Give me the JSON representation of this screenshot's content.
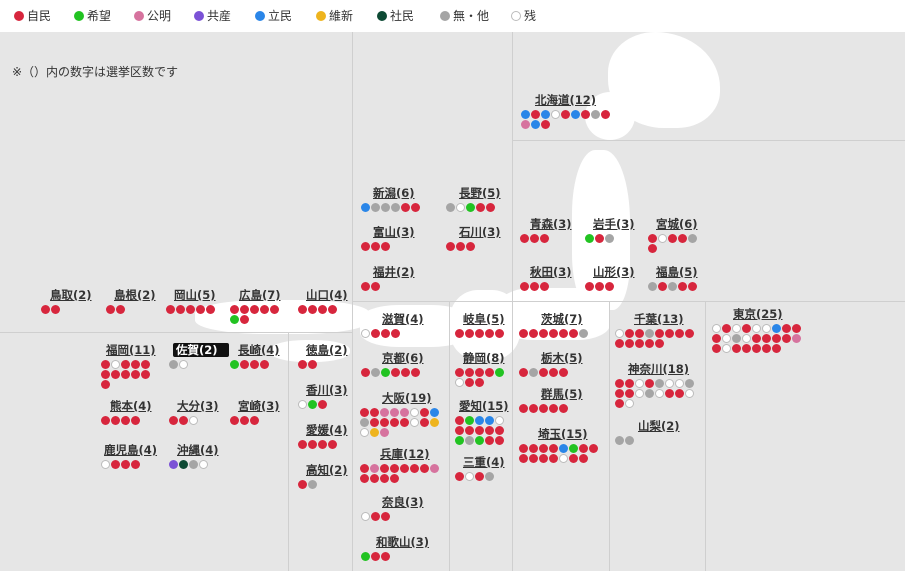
{
  "legend": [
    {
      "label": "自民",
      "key": "jimin"
    },
    {
      "label": "希望",
      "key": "kibou"
    },
    {
      "label": "公明",
      "key": "koumei"
    },
    {
      "label": "共産",
      "key": "kyousan"
    },
    {
      "label": "立民",
      "key": "rikken"
    },
    {
      "label": "維新",
      "key": "ishin"
    },
    {
      "label": "社民",
      "key": "shamin"
    },
    {
      "label": "無・他",
      "key": "mushozoku"
    },
    {
      "label": "残",
      "key": "zan"
    }
  ],
  "colors": {
    "jimin": "#d7263d",
    "kibou": "#22c322",
    "koumei": "#d6739e",
    "kyousan": "#7b52d6",
    "rikken": "#2a86e8",
    "ishin": "#eeb41e",
    "shamin": "#0d4a34",
    "mushozoku": "#a5a5a5",
    "zan": "#ffffff"
  },
  "note": "※（）内の数字は選挙区数です",
  "prefectures": {
    "hokkaido": {
      "label": "北海道(12)",
      "seats": [
        "rikken",
        "jimin",
        "rikken",
        "zan",
        "jimin",
        "rikken",
        "jimin",
        "mushozoku",
        "jimin",
        "koumei",
        "rikken",
        "jimin"
      ]
    },
    "niigata": {
      "label": "新潟(6)",
      "seats": [
        "rikken",
        "mushozoku",
        "mushozoku",
        "mushozoku",
        "jimin",
        "jimin"
      ]
    },
    "nagano": {
      "label": "長野(5)",
      "seats": [
        "mushozoku",
        "zan",
        "kibou",
        "jimin",
        "jimin"
      ]
    },
    "toyama": {
      "label": "富山(3)",
      "seats": [
        "jimin",
        "jimin",
        "jimin"
      ]
    },
    "ishikawa": {
      "label": "石川(3)",
      "seats": [
        "jimin",
        "jimin",
        "jimin"
      ]
    },
    "fukui": {
      "label": "福井(2)",
      "seats": [
        "jimin",
        "jimin"
      ]
    },
    "aomori": {
      "label": "青森(3)",
      "seats": [
        "jimin",
        "jimin",
        "jimin"
      ]
    },
    "iwate": {
      "label": "岩手(3)",
      "seats": [
        "kibou",
        "jimin",
        "mushozoku"
      ]
    },
    "miyagi": {
      "label": "宮城(6)",
      "seats": [
        "jimin",
        "zan",
        "jimin",
        "jimin",
        "mushozoku",
        "jimin"
      ]
    },
    "akita": {
      "label": "秋田(3)",
      "seats": [
        "jimin",
        "jimin",
        "jimin"
      ]
    },
    "yamagata": {
      "label": "山形(3)",
      "seats": [
        "jimin",
        "jimin",
        "jimin"
      ]
    },
    "fukushima": {
      "label": "福島(5)",
      "seats": [
        "mushozoku",
        "jimin",
        "mushozoku",
        "jimin",
        "jimin"
      ]
    },
    "tottori": {
      "label": "鳥取(2)",
      "seats": [
        "jimin",
        "jimin"
      ]
    },
    "shimane": {
      "label": "島根(2)",
      "seats": [
        "jimin",
        "jimin"
      ]
    },
    "okayama": {
      "label": "岡山(5)",
      "seats": [
        "jimin",
        "jimin",
        "jimin",
        "jimin",
        "jimin"
      ]
    },
    "hiroshima": {
      "label": "広島(7)",
      "seats": [
        "jimin",
        "jimin",
        "jimin",
        "jimin",
        "jimin",
        "kibou",
        "jimin"
      ]
    },
    "yamaguchi": {
      "label": "山口(4)",
      "seats": [
        "jimin",
        "jimin",
        "jimin",
        "jimin"
      ]
    },
    "shiga": {
      "label": "滋賀(4)",
      "seats": [
        "zan",
        "jimin",
        "jimin",
        "jimin"
      ]
    },
    "gifu": {
      "label": "岐阜(5)",
      "seats": [
        "jimin",
        "jimin",
        "jimin",
        "jimin",
        "jimin"
      ]
    },
    "ibaraki": {
      "label": "茨城(7)",
      "seats": [
        "jimin",
        "jimin",
        "jimin",
        "jimin",
        "jimin",
        "jimin",
        "mushozoku"
      ]
    },
    "chiba": {
      "label": "千葉(13)",
      "seats": [
        "zan",
        "jimin",
        "jimin",
        "mushozoku",
        "jimin",
        "jimin",
        "jimin",
        "jimin",
        "jimin",
        "jimin",
        "jimin",
        "jimin",
        "jimin"
      ]
    },
    "tokyo": {
      "label": "東京(25)",
      "seats": [
        "zan",
        "jimin",
        "zan",
        "jimin",
        "zan",
        "zan",
        "rikken",
        "jimin",
        "jimin",
        "jimin",
        "zan",
        "mushozoku",
        "zan",
        "jimin",
        "jimin",
        "jimin",
        "jimin",
        "koumei",
        "jimin",
        "zan",
        "jimin",
        "jimin",
        "jimin",
        "jimin",
        "jimin"
      ]
    },
    "fukuoka": {
      "label": "福岡(11)",
      "seats": [
        "jimin",
        "zan",
        "jimin",
        "jimin",
        "jimin",
        "jimin",
        "jimin",
        "jimin",
        "jimin",
        "jimin",
        "jimin"
      ]
    },
    "saga": {
      "label": "佐賀(2)",
      "seats": [
        "mushozoku",
        "zan"
      ]
    },
    "nagasaki": {
      "label": "長崎(4)",
      "seats": [
        "kibou",
        "jimin",
        "jimin",
        "jimin"
      ]
    },
    "tokushima": {
      "label": "徳島(2)",
      "seats": [
        "jimin",
        "jimin"
      ]
    },
    "kyoto": {
      "label": "京都(6)",
      "seats": [
        "jimin",
        "mushozoku",
        "kibou",
        "jimin",
        "jimin",
        "jimin"
      ]
    },
    "shizuoka": {
      "label": "静岡(8)",
      "seats": [
        "jimin",
        "jimin",
        "jimin",
        "jimin",
        "kibou",
        "zan",
        "jimin",
        "jimin"
      ]
    },
    "tochigi": {
      "label": "栃木(5)",
      "seats": [
        "jimin",
        "mushozoku",
        "jimin",
        "jimin",
        "jimin"
      ]
    },
    "kanagawa": {
      "label": "神奈川(18)",
      "seats": [
        "jimin",
        "jimin",
        "zan",
        "jimin",
        "mushozoku",
        "zan",
        "zan",
        "mushozoku",
        "jimin",
        "jimin",
        "zan",
        "mushozoku",
        "zan",
        "jimin",
        "jimin",
        "zan",
        "jimin",
        "zan"
      ]
    },
    "kumamoto": {
      "label": "熊本(4)",
      "seats": [
        "jimin",
        "jimin",
        "jimin",
        "jimin"
      ]
    },
    "oita": {
      "label": "大分(3)",
      "seats": [
        "jimin",
        "jimin",
        "zan"
      ]
    },
    "miyazaki": {
      "label": "宮崎(3)",
      "seats": [
        "jimin",
        "jimin",
        "jimin"
      ]
    },
    "kagawa": {
      "label": "香川(3)",
      "seats": [
        "zan",
        "kibou",
        "jimin"
      ]
    },
    "osaka": {
      "label": "大阪(19)",
      "seats": [
        "jimin",
        "jimin",
        "koumei",
        "koumei",
        "koumei",
        "zan",
        "jimin",
        "rikken",
        "mushozoku",
        "jimin",
        "jimin",
        "jimin",
        "jimin",
        "zan",
        "jimin",
        "ishin",
        "zan",
        "ishin",
        "koumei"
      ]
    },
    "aichi": {
      "label": "愛知(15)",
      "seats": [
        "jimin",
        "kibou",
        "rikken",
        "rikken",
        "zan",
        "jimin",
        "jimin",
        "jimin",
        "jimin",
        "jimin",
        "kibou",
        "mushozoku",
        "kibou",
        "jimin",
        "jimin"
      ]
    },
    "gunma": {
      "label": "群馬(5)",
      "seats": [
        "jimin",
        "jimin",
        "jimin",
        "jimin",
        "jimin"
      ]
    },
    "saitama": {
      "label": "埼玉(15)",
      "seats": [
        "jimin",
        "jimin",
        "jimin",
        "jimin",
        "rikken",
        "kibou",
        "jimin",
        "jimin",
        "jimin",
        "jimin",
        "jimin",
        "jimin",
        "zan",
        "jimin",
        "jimin"
      ]
    },
    "yamanashi": {
      "label": "山梨(2)",
      "seats": [
        "mushozoku",
        "mushozoku"
      ]
    },
    "kagoshima": {
      "label": "鹿児島(4)",
      "seats": [
        "zan",
        "jimin",
        "jimin",
        "jimin"
      ]
    },
    "okinawa": {
      "label": "沖縄(4)",
      "seats": [
        "kyousan",
        "shamin",
        "mushozoku",
        "zan"
      ]
    },
    "ehime": {
      "label": "愛媛(4)",
      "seats": [
        "jimin",
        "jimin",
        "jimin",
        "jimin"
      ]
    },
    "kochi": {
      "label": "高知(2)",
      "seats": [
        "jimin",
        "mushozoku"
      ]
    },
    "hyogo": {
      "label": "兵庫(12)",
      "seats": [
        "jimin",
        "koumei",
        "jimin",
        "jimin",
        "jimin",
        "jimin",
        "jimin",
        "koumei",
        "jimin",
        "jimin",
        "jimin",
        "jimin"
      ]
    },
    "mie": {
      "label": "三重(4)",
      "seats": [
        "jimin",
        "zan",
        "jimin",
        "mushozoku"
      ]
    },
    "nara": {
      "label": "奈良(3)",
      "seats": [
        "zan",
        "jimin",
        "jimin"
      ]
    },
    "wakayama": {
      "label": "和歌山(3)",
      "seats": [
        "kibou",
        "jimin",
        "jimin"
      ]
    }
  }
}
